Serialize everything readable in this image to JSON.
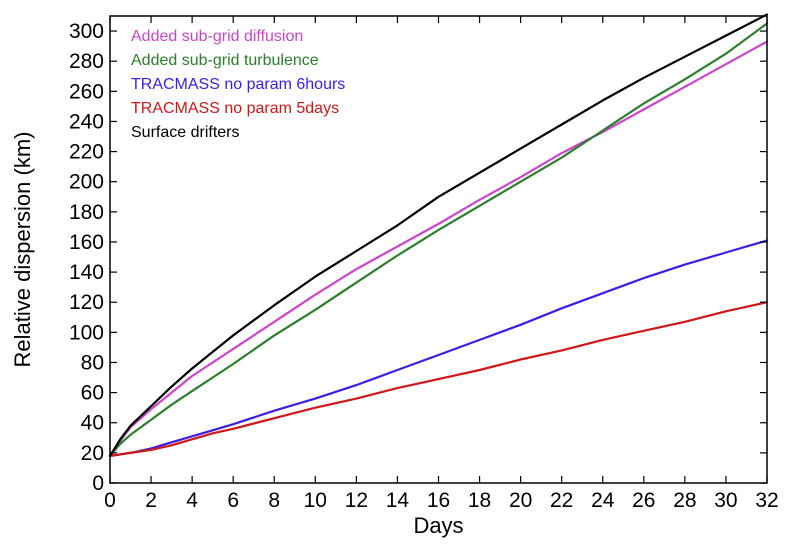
{
  "chart_data": {
    "type": "line",
    "xlabel": "Days",
    "ylabel": "Relative dispersion (km)",
    "xlim": [
      0,
      32
    ],
    "ylim": [
      0,
      310
    ],
    "xticks": [
      0,
      2,
      4,
      6,
      8,
      10,
      12,
      14,
      16,
      18,
      20,
      22,
      24,
      26,
      28,
      30,
      32
    ],
    "yticks": [
      0,
      20,
      40,
      60,
      80,
      100,
      120,
      140,
      160,
      180,
      200,
      220,
      240,
      260,
      280,
      300
    ],
    "grid": false,
    "legend_position": "top-left",
    "series": [
      {
        "name": "Added sub-grid diffusion",
        "color": "#cc44cc",
        "x": [
          0,
          0.5,
          1,
          2,
          3,
          4,
          5,
          6,
          8,
          10,
          12,
          14,
          16,
          18,
          20,
          22,
          24,
          26,
          28,
          30,
          32
        ],
        "y": [
          18,
          28,
          37,
          49,
          60,
          71,
          80,
          89,
          107,
          125,
          142,
          157,
          172,
          188,
          203,
          219,
          233,
          248,
          263,
          278,
          293
        ]
      },
      {
        "name": "Added sub-grid turbulence",
        "color": "#2a7f2a",
        "x": [
          0,
          0.5,
          1,
          2,
          3,
          4,
          5,
          6,
          8,
          10,
          12,
          14,
          16,
          18,
          20,
          22,
          24,
          26,
          28,
          30,
          32
        ],
        "y": [
          18,
          26,
          32,
          42,
          52,
          61,
          70,
          79,
          98,
          115,
          133,
          151,
          168,
          184,
          200,
          216,
          234,
          252,
          268,
          285,
          305
        ]
      },
      {
        "name": "TRACMASS no param 6hours",
        "color": "#3a1ee6",
        "x": [
          0,
          0.5,
          1,
          2,
          3,
          4,
          5,
          6,
          8,
          10,
          12,
          14,
          16,
          18,
          20,
          22,
          24,
          26,
          28,
          30,
          32
        ],
        "y": [
          18,
          19,
          20,
          23,
          27,
          31,
          35,
          39,
          48,
          56,
          65,
          75,
          85,
          95,
          105,
          116,
          126,
          136,
          145,
          153,
          161
        ]
      },
      {
        "name": "TRACMASS no param 5days",
        "color": "#d01818",
        "x": [
          0,
          0.5,
          1,
          2,
          3,
          4,
          5,
          6,
          8,
          10,
          12,
          14,
          16,
          18,
          20,
          22,
          24,
          26,
          28,
          30,
          32
        ],
        "y": [
          18,
          19,
          20,
          22,
          25,
          29,
          33,
          36,
          43,
          50,
          56,
          63,
          69,
          75,
          82,
          88,
          95,
          101,
          107,
          114,
          120
        ]
      },
      {
        "name": "Surface drifters",
        "color": "#000000",
        "x": [
          0,
          0.5,
          1,
          2,
          3,
          4,
          5,
          6,
          8,
          10,
          12,
          14,
          16,
          18,
          20,
          22,
          24,
          26,
          28,
          30,
          32
        ],
        "y": [
          18,
          29,
          38,
          51,
          64,
          76,
          87,
          98,
          118,
          137,
          154,
          171,
          190,
          206,
          222,
          238,
          254,
          269,
          283,
          297,
          311
        ]
      }
    ]
  }
}
